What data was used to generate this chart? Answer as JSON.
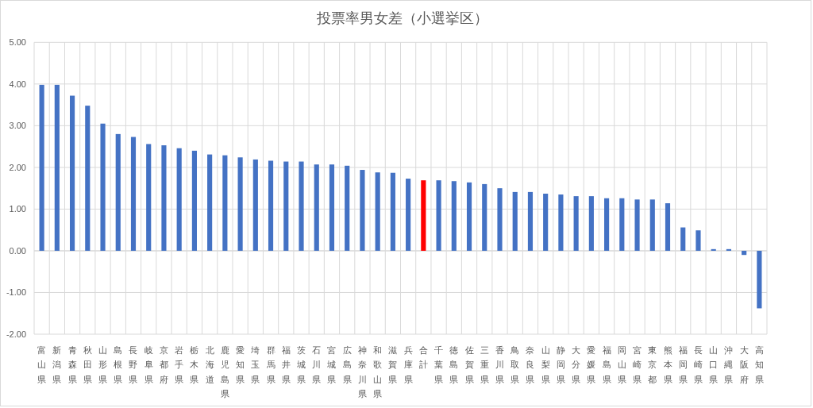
{
  "chart_data": {
    "type": "bar",
    "title": "投票率男女差（小選挙区）",
    "categories": [
      "富山県",
      "新潟県",
      "青森県",
      "秋田県",
      "山形県",
      "島根県",
      "長野県",
      "岐阜県",
      "京都府",
      "岩手県",
      "栃木県",
      "北海道",
      "鹿児島県",
      "愛知県",
      "埼玉県",
      "群馬県",
      "福井県",
      "茨城県",
      "石川県",
      "宮城県",
      "広島県",
      "神奈川県",
      "和歌山県",
      "滋賀県",
      "兵庫県",
      "合計",
      "千葉県",
      "徳島県",
      "佐賀県",
      "三重県",
      "香川県",
      "鳥取県",
      "奈良県",
      "山梨県",
      "静岡県",
      "大分県",
      "愛媛県",
      "福島県",
      "岡山県",
      "宮崎県",
      "東京都",
      "熊本県",
      "福岡県",
      "長崎県",
      "山口県",
      "沖縄県",
      "大阪府",
      "高知県"
    ],
    "values": [
      3.98,
      3.98,
      3.72,
      3.48,
      3.05,
      2.8,
      2.73,
      2.56,
      2.53,
      2.46,
      2.4,
      2.31,
      2.29,
      2.24,
      2.19,
      2.16,
      2.14,
      2.14,
      2.07,
      2.07,
      2.04,
      1.94,
      1.88,
      1.87,
      1.73,
      1.69,
      1.69,
      1.67,
      1.64,
      1.6,
      1.5,
      1.41,
      1.41,
      1.37,
      1.35,
      1.31,
      1.31,
      1.26,
      1.26,
      1.23,
      1.23,
      1.14,
      0.56,
      0.49,
      0.04,
      0.04,
      -0.1,
      -1.38
    ],
    "colors": [
      "#4472c4",
      "#4472c4",
      "#4472c4",
      "#4472c4",
      "#4472c4",
      "#4472c4",
      "#4472c4",
      "#4472c4",
      "#4472c4",
      "#4472c4",
      "#4472c4",
      "#4472c4",
      "#4472c4",
      "#4472c4",
      "#4472c4",
      "#4472c4",
      "#4472c4",
      "#4472c4",
      "#4472c4",
      "#4472c4",
      "#4472c4",
      "#4472c4",
      "#4472c4",
      "#4472c4",
      "#4472c4",
      "#ff0000",
      "#4472c4",
      "#4472c4",
      "#4472c4",
      "#4472c4",
      "#4472c4",
      "#4472c4",
      "#4472c4",
      "#4472c4",
      "#4472c4",
      "#4472c4",
      "#4472c4",
      "#4472c4",
      "#4472c4",
      "#4472c4",
      "#4472c4",
      "#4472c4",
      "#4472c4",
      "#4472c4",
      "#4472c4",
      "#4472c4",
      "#4472c4",
      "#4472c4"
    ],
    "ylim": [
      -2,
      5
    ],
    "yticks": [
      {
        "value": -2,
        "label": "-2.00"
      },
      {
        "value": -1,
        "label": "-1.00"
      },
      {
        "value": 0,
        "label": "0.00"
      },
      {
        "value": 1,
        "label": "1.00"
      },
      {
        "value": 2,
        "label": "2.00"
      },
      {
        "value": 3,
        "label": "3.00"
      },
      {
        "value": 4,
        "label": "4.00"
      },
      {
        "value": 5,
        "label": "5.00"
      }
    ],
    "grid": true
  }
}
